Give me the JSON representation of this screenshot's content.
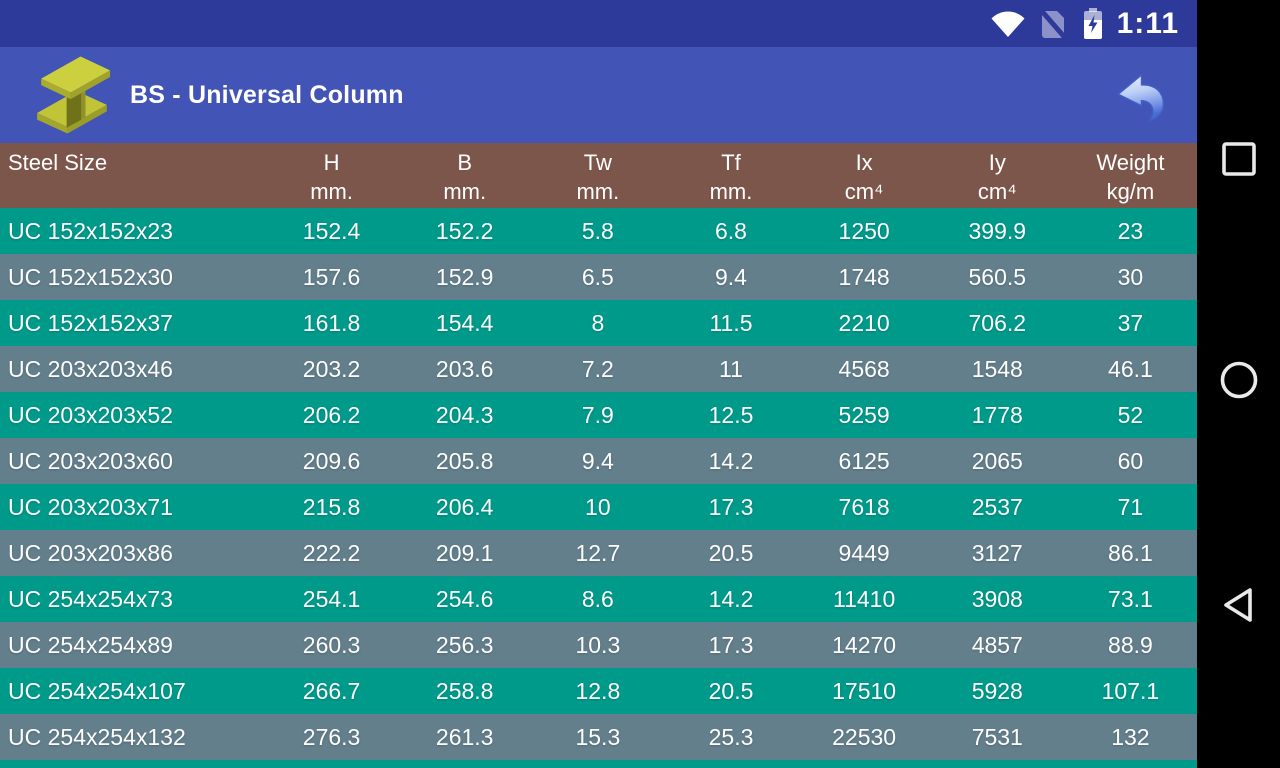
{
  "status_bar": {
    "time": "1:11",
    "icons": [
      "wifi-icon",
      "no-sim-icon",
      "battery-charging-icon"
    ]
  },
  "app_bar": {
    "title": "BS - Universal Column",
    "app_icon": "ibeam-icon",
    "back_icon": "glossy-back-arrow-icon"
  },
  "table": {
    "columns": [
      {
        "label": "Steel Size",
        "unit": ""
      },
      {
        "label": "H",
        "unit": "mm."
      },
      {
        "label": "B",
        "unit": "mm."
      },
      {
        "label": "Tw",
        "unit": "mm."
      },
      {
        "label": "Tf",
        "unit": "mm."
      },
      {
        "label": "Ix",
        "unit": "cm⁴"
      },
      {
        "label": "Iy",
        "unit": "cm⁴"
      },
      {
        "label": "Weight",
        "unit": "kg/m"
      }
    ],
    "rows": [
      [
        "UC 152x152x23",
        "152.4",
        "152.2",
        "5.8",
        "6.8",
        "1250",
        "399.9",
        "23"
      ],
      [
        "UC 152x152x30",
        "157.6",
        "152.9",
        "6.5",
        "9.4",
        "1748",
        "560.5",
        "30"
      ],
      [
        "UC 152x152x37",
        "161.8",
        "154.4",
        "8",
        "11.5",
        "2210",
        "706.2",
        "37"
      ],
      [
        "UC 203x203x46",
        "203.2",
        "203.6",
        "7.2",
        "11",
        "4568",
        "1548",
        "46.1"
      ],
      [
        "UC 203x203x52",
        "206.2",
        "204.3",
        "7.9",
        "12.5",
        "5259",
        "1778",
        "52"
      ],
      [
        "UC 203x203x60",
        "209.6",
        "205.8",
        "9.4",
        "14.2",
        "6125",
        "2065",
        "60"
      ],
      [
        "UC 203x203x71",
        "215.8",
        "206.4",
        "10",
        "17.3",
        "7618",
        "2537",
        "71"
      ],
      [
        "UC 203x203x86",
        "222.2",
        "209.1",
        "12.7",
        "20.5",
        "9449",
        "3127",
        "86.1"
      ],
      [
        "UC 254x254x73",
        "254.1",
        "254.6",
        "8.6",
        "14.2",
        "11410",
        "3908",
        "73.1"
      ],
      [
        "UC 254x254x89",
        "260.3",
        "256.3",
        "10.3",
        "17.3",
        "14270",
        "4857",
        "88.9"
      ],
      [
        "UC 254x254x107",
        "266.7",
        "258.8",
        "12.8",
        "20.5",
        "17510",
        "5928",
        "107.1"
      ],
      [
        "UC 254x254x132",
        "276.3",
        "261.3",
        "15.3",
        "25.3",
        "22530",
        "7531",
        "132"
      ]
    ]
  },
  "nav_bar": {
    "buttons": [
      {
        "name": "recents-button",
        "icon": "square-icon"
      },
      {
        "name": "home-button",
        "icon": "circle-icon"
      },
      {
        "name": "back-button",
        "icon": "triangle-icon"
      }
    ]
  },
  "colors": {
    "status_bar_bg": "#2E3A99",
    "app_bar_bg": "#4254B5",
    "table_header_bg": "#7C564A",
    "row_teal": "#009A8B",
    "row_gray": "#637F8C",
    "nav_bar_bg": "#000000",
    "text": "#FFFFFF",
    "beam_icon_yellow": "#CDD03E",
    "back_arrow_blue": "#5B7CD9"
  }
}
